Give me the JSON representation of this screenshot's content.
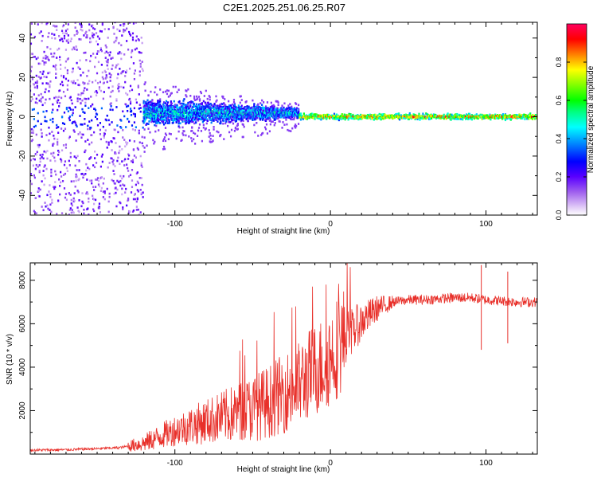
{
  "title": "C2E1.2025.251.06.25.R07",
  "chart_data": [
    {
      "type": "heatmap",
      "name": "spectrogram",
      "xlabel": "Height of straight line (km)",
      "ylabel": "Frequency (Hz)",
      "xlim": [
        -193,
        133
      ],
      "ylim": [
        -50,
        48
      ],
      "xticks": [
        -100,
        0,
        100
      ],
      "yticks": [
        -40,
        -20,
        0,
        20,
        40
      ],
      "colorbar": {
        "label": "Normalized spectral amplitude",
        "range": [
          0,
          1
        ],
        "ticks": [
          0.0,
          0.2,
          0.4,
          0.6,
          0.8
        ],
        "colors": [
          "#ffffff",
          "#c9a8f0",
          "#8a2be2",
          "#5a00ff",
          "#0000ff",
          "#0080ff",
          "#00ffff",
          "#00ff80",
          "#00ff00",
          "#80ff00",
          "#ffff00",
          "#ff8000",
          "#ff0000",
          "#ff0060"
        ]
      },
      "features": [
        {
          "x_range": [
            -193,
            -120
          ],
          "freq_spread_hz": 50,
          "amplitude": 0.2,
          "description": "broadband noise"
        },
        {
          "x_range": [
            -120,
            -20
          ],
          "freq_spread_hz": 9,
          "amplitude": 0.45,
          "description": "narrowing band near 0 Hz"
        },
        {
          "x_range": [
            -20,
            133
          ],
          "freq_spread_hz": 2,
          "amplitude": 0.95,
          "description": "coherent carrier at 0 Hz"
        }
      ]
    },
    {
      "type": "line",
      "name": "snr",
      "xlabel": "Height of straight line (km)",
      "ylabel": "SNR (10 * v/v)",
      "xlim": [
        -193,
        133
      ],
      "ylim": [
        0,
        8800
      ],
      "xticks": [
        -100,
        0,
        100
      ],
      "yticks": [
        2000,
        4000,
        6000,
        8000
      ],
      "color": "#e8302a",
      "series": [
        {
          "name": "SNR",
          "x": [
            -193,
            -170,
            -150,
            -135,
            -120,
            -110,
            -100,
            -90,
            -80,
            -70,
            -60,
            -50,
            -40,
            -30,
            -20,
            -15,
            -10,
            -5,
            0,
            5,
            10,
            20,
            30,
            40,
            50,
            60,
            70,
            80,
            90,
            95,
            100,
            110,
            120,
            133
          ],
          "y": [
            180,
            200,
            250,
            300,
            500,
            800,
            1100,
            1300,
            1500,
            1700,
            1900,
            2100,
            2400,
            2800,
            3200,
            3600,
            3900,
            4100,
            4500,
            5000,
            5400,
            6100,
            6700,
            7000,
            7100,
            7100,
            7150,
            7200,
            7200,
            7150,
            7100,
            7050,
            7000,
            7000
          ]
        }
      ],
      "annotations": [
        {
          "x": 97,
          "y_min": 4800,
          "y_max": 8700,
          "description": "spike"
        },
        {
          "x": 114,
          "y_min": 5100,
          "y_max": 8400,
          "description": "spike"
        }
      ]
    }
  ]
}
